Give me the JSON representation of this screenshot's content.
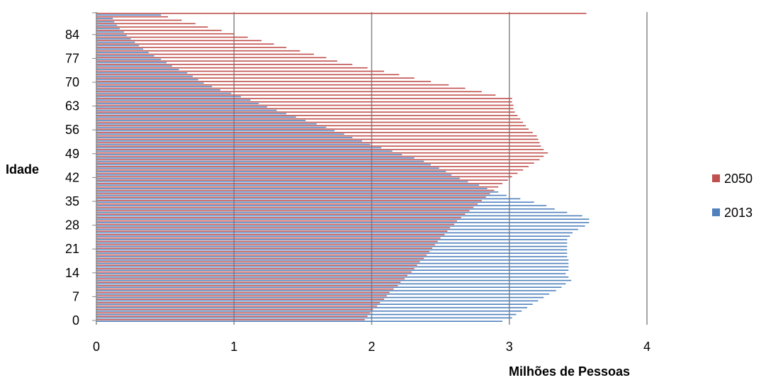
{
  "chart_data": {
    "type": "bar",
    "orientation": "horizontal",
    "xlabel": "Milhões de Pessoas",
    "ylabel": "Idade",
    "xlim": [
      0,
      4
    ],
    "x_ticks": [
      "0",
      "1",
      "2",
      "3",
      "4"
    ],
    "y_tick_labels": [
      "0",
      "7",
      "14",
      "21",
      "28",
      "35",
      "42",
      "49",
      "56",
      "63",
      "70",
      "77",
      "84"
    ],
    "y_tick_values": [
      0,
      7,
      14,
      21,
      28,
      35,
      42,
      49,
      56,
      63,
      70,
      77,
      84
    ],
    "ages_top": 90,
    "grid": "vertical",
    "legend_position": "right",
    "colors": {
      "2013": "#4f81bd",
      "2050": "#c0504d"
    },
    "series": [
      {
        "name": "2013",
        "values": [
          2.95,
          3.02,
          3.05,
          3.09,
          3.13,
          3.17,
          3.21,
          3.25,
          3.29,
          3.34,
          3.38,
          3.41,
          3.45,
          3.43,
          3.41,
          3.43,
          3.43,
          3.43,
          3.43,
          3.42,
          3.42,
          3.42,
          3.42,
          3.42,
          3.42,
          3.44,
          3.46,
          3.5,
          3.55,
          3.58,
          3.58,
          3.53,
          3.42,
          3.33,
          3.27,
          3.18,
          3.08,
          2.98,
          2.92,
          2.84,
          2.78,
          2.7,
          2.64,
          2.58,
          2.54,
          2.49,
          2.43,
          2.38,
          2.31,
          2.22,
          2.15,
          2.07,
          1.99,
          1.93,
          1.86,
          1.8,
          1.73,
          1.67,
          1.6,
          1.52,
          1.45,
          1.38,
          1.31,
          1.24,
          1.18,
          1.12,
          1.05,
          0.98,
          0.9,
          0.84,
          0.78,
          0.74,
          0.7,
          0.66,
          0.6,
          0.55,
          0.51,
          0.47,
          0.42,
          0.38,
          0.34,
          0.31,
          0.28,
          0.25,
          0.22,
          0.2,
          0.17,
          0.15,
          0.13,
          0.12,
          0.47
        ]
      },
      {
        "name": "2050",
        "values": [
          1.95,
          1.97,
          1.99,
          2.01,
          2.04,
          2.06,
          2.09,
          2.11,
          2.13,
          2.16,
          2.19,
          2.21,
          2.24,
          2.26,
          2.29,
          2.31,
          2.33,
          2.35,
          2.38,
          2.4,
          2.42,
          2.44,
          2.46,
          2.48,
          2.5,
          2.53,
          2.55,
          2.57,
          2.6,
          2.62,
          2.65,
          2.68,
          2.71,
          2.74,
          2.77,
          2.8,
          2.83,
          2.86,
          2.89,
          2.92,
          2.95,
          2.99,
          3.02,
          3.06,
          3.1,
          3.14,
          3.18,
          3.22,
          3.25,
          3.28,
          3.25,
          3.23,
          3.22,
          3.21,
          3.2,
          3.17,
          3.14,
          3.12,
          3.1,
          3.08,
          3.06,
          3.04,
          3.03,
          3.03,
          3.02,
          3.02,
          2.9,
          2.8,
          2.68,
          2.56,
          2.43,
          2.31,
          2.2,
          2.09,
          1.97,
          1.86,
          1.75,
          1.67,
          1.58,
          1.48,
          1.38,
          1.29,
          1.2,
          1.1,
          1.0,
          0.91,
          0.81,
          0.72,
          0.62,
          0.52,
          3.56
        ]
      }
    ]
  }
}
